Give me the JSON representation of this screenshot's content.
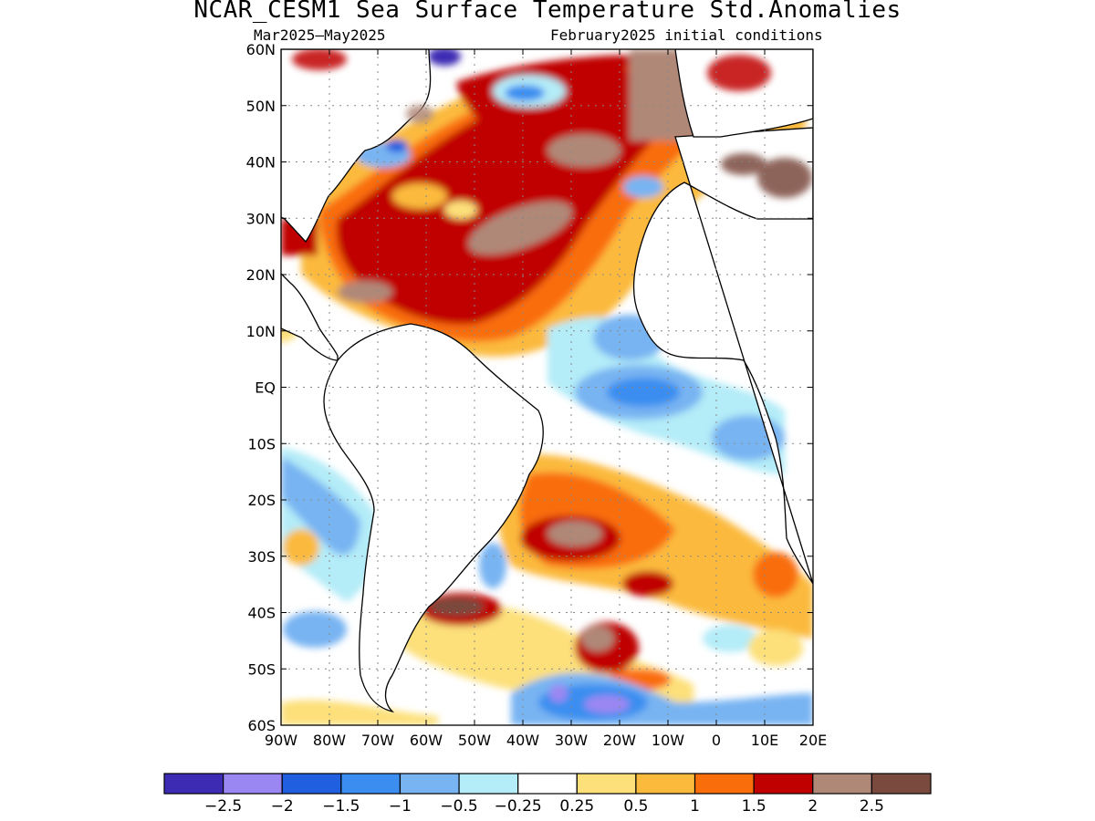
{
  "title": "NCAR_CESM1 Sea Surface Temperature Std.Anomalies",
  "subtitle_left": "Mar2025—May2025",
  "subtitle_right": "February2025 initial conditions",
  "lat_labels": [
    "60N",
    "50N",
    "40N",
    "30N",
    "20N",
    "10N",
    "EQ",
    "10S",
    "20S",
    "30S",
    "40S",
    "50S",
    "60S"
  ],
  "lon_labels": [
    "90W",
    "80W",
    "70W",
    "60W",
    "50W",
    "40W",
    "30W",
    "20W",
    "10W",
    "0",
    "10E",
    "20E"
  ],
  "colorbar": {
    "colors": [
      "#3d2cb3",
      "#9b87f2",
      "#1f5fe0",
      "#3b8ef0",
      "#78b4f2",
      "#b4ecf8",
      "#ffffff",
      "#fde07a",
      "#fbba3c",
      "#f96d0a",
      "#c00000",
      "#b08878",
      "#7a4a3e"
    ],
    "labels": [
      "−2.5",
      "−2",
      "−1.5",
      "−1",
      "−0.5",
      "−0.25",
      "0.25",
      "0.5",
      "1",
      "1.5",
      "2",
      "2.5"
    ]
  },
  "land_color": "#ffffff",
  "grid": "dotted"
}
